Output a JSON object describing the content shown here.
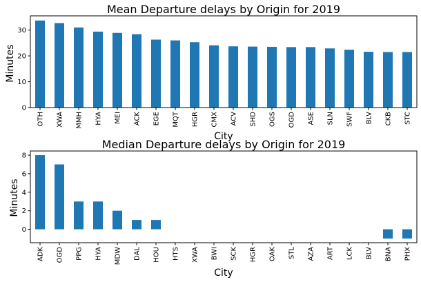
{
  "colors": {
    "bar": "#1f77b4",
    "background": "#ffffff",
    "axis": "#000000"
  },
  "chart_data": [
    {
      "type": "bar",
      "title": "Mean Departure delays by Origin for 2019",
      "xlabel": "City",
      "ylabel": "Minutes",
      "categories": [
        "OTH",
        "XWA",
        "MMH",
        "HYA",
        "MEI",
        "ACK",
        "EGE",
        "MQT",
        "HGR",
        "CMX",
        "ACV",
        "SHD",
        "OGS",
        "OGD",
        "ASE",
        "SLN",
        "SWF",
        "BLV",
        "CKB",
        "STC"
      ],
      "values": [
        33.7,
        32.7,
        31.0,
        29.4,
        28.9,
        28.4,
        26.3,
        26.0,
        25.3,
        24.1,
        23.7,
        23.6,
        23.5,
        23.4,
        23.4,
        22.9,
        22.4,
        21.6,
        21.5,
        21.5
      ],
      "ylim": [
        0,
        35.5
      ],
      "yticks": [
        0,
        10,
        20,
        30
      ],
      "grid": false,
      "legend": "none"
    },
    {
      "type": "bar",
      "title": "Median Departure delays by Origin for 2019",
      "xlabel": "City",
      "ylabel": "Minutes",
      "categories": [
        "ADK",
        "OGD",
        "PPG",
        "HYA",
        "MDW",
        "DAL",
        "HOU",
        "HTS",
        "XWA",
        "BWI",
        "SCK",
        "HGR",
        "OAK",
        "STL",
        "AZA",
        "ART",
        "LCK",
        "BLV",
        "BNA",
        "PHX"
      ],
      "values": [
        8,
        7,
        3,
        3,
        2,
        1,
        1,
        0,
        0,
        0,
        0,
        0,
        0,
        0,
        0,
        0,
        0,
        0,
        -1,
        -1
      ],
      "ylim": [
        -1.45,
        8.45
      ],
      "yticks": [
        0,
        2,
        4,
        6,
        8
      ],
      "grid": false,
      "legend": "none"
    }
  ]
}
